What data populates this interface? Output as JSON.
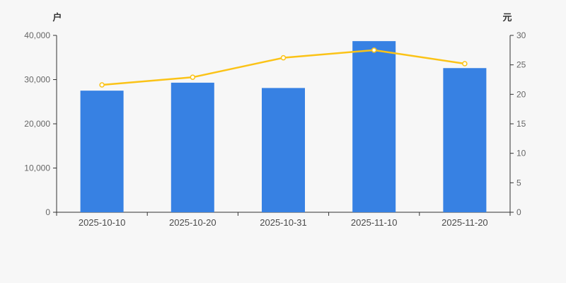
{
  "page": {
    "background": "#f7f7f7"
  },
  "chart_data": {
    "type": "bar+line dual-axis",
    "categories": [
      "2025-10-10",
      "2025-10-20",
      "2025-10-31",
      "2025-11-10",
      "2025-11-20"
    ],
    "series": [
      {
        "type": "bar",
        "axis": "left",
        "color": "#3781e3",
        "values": [
          27500,
          29300,
          28100,
          38700,
          32600
        ]
      },
      {
        "type": "line",
        "axis": "right",
        "color": "#fbc317",
        "marker": "hollow-circle",
        "values": [
          21.6,
          22.9,
          26.2,
          27.5,
          25.2
        ]
      }
    ],
    "left_axis": {
      "name": "户",
      "min": 0,
      "max": 40000,
      "step": 10000,
      "tick_labels": [
        "0",
        "10,000",
        "20,000",
        "30,000",
        "40,000"
      ]
    },
    "right_axis": {
      "name": "元",
      "min": 0,
      "max": 30,
      "step": 5,
      "tick_labels": [
        "0",
        "5",
        "10",
        "15",
        "20",
        "25",
        "30"
      ]
    },
    "title": "",
    "legend": false,
    "grid": false,
    "axis_line_color": "#333333"
  }
}
